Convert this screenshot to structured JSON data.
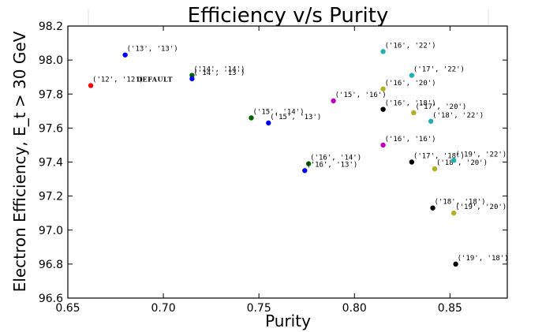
{
  "chart_data": {
    "type": "scatter",
    "title": "Efficiency v/s Purity",
    "xlabel": "Purity",
    "ylabel": "Electron Efficiency, E_t > 30 GeV",
    "xlim": [
      0.65,
      0.88
    ],
    "ylim": [
      96.6,
      98.2
    ],
    "xticks": [
      "0.65",
      "0.70",
      "0.75",
      "0.80",
      "0.85"
    ],
    "yticks": [
      "96.6",
      "96.8",
      "97.0",
      "97.2",
      "97.4",
      "97.6",
      "97.8",
      "98.0",
      "98.2"
    ],
    "grid": false,
    "points": [
      {
        "x": 0.662,
        "y": 97.85,
        "label": "('12', '12')",
        "note": "DEFAULT",
        "color": "#ff0000"
      },
      {
        "x": 0.68,
        "y": 98.03,
        "label": "('13', '13')",
        "color": "#0000ff"
      },
      {
        "x": 0.715,
        "y": 97.91,
        "label": "('14', '14')",
        "color": "#006400"
      },
      {
        "x": 0.715,
        "y": 97.89,
        "label": "('14', '13')",
        "color": "#0000ff"
      },
      {
        "x": 0.746,
        "y": 97.66,
        "label": "('15', '14')",
        "color": "#006400"
      },
      {
        "x": 0.755,
        "y": 97.63,
        "label": "('15', '13')",
        "color": "#0000ff"
      },
      {
        "x": 0.789,
        "y": 97.76,
        "label": "('15', '16')",
        "color": "#c000c0"
      },
      {
        "x": 0.776,
        "y": 97.39,
        "label": "('16', '14')",
        "color": "#006400"
      },
      {
        "x": 0.774,
        "y": 97.35,
        "label": "('16', '13')",
        "color": "#0000ff"
      },
      {
        "x": 0.815,
        "y": 98.05,
        "label": "('16', '22')",
        "color": "#20b0b0"
      },
      {
        "x": 0.815,
        "y": 97.83,
        "label": "('16', '20')",
        "color": "#b0b020"
      },
      {
        "x": 0.815,
        "y": 97.71,
        "label": "('16', '18')",
        "color": "#000000"
      },
      {
        "x": 0.815,
        "y": 97.5,
        "label": "('16', '16')",
        "color": "#c000c0"
      },
      {
        "x": 0.83,
        "y": 97.91,
        "label": "('17', '22')",
        "color": "#20b0b0"
      },
      {
        "x": 0.831,
        "y": 97.69,
        "label": "('17', '20')",
        "color": "#b0b020"
      },
      {
        "x": 0.83,
        "y": 97.4,
        "label": "('17', '18')",
        "color": "#000000"
      },
      {
        "x": 0.84,
        "y": 97.64,
        "label": "('18', '22')",
        "color": "#20b0b0"
      },
      {
        "x": 0.842,
        "y": 97.36,
        "label": "('18', '20')",
        "color": "#b0b020"
      },
      {
        "x": 0.841,
        "y": 97.13,
        "label": "('18', '18')",
        "color": "#000000"
      },
      {
        "x": 0.852,
        "y": 97.41,
        "label": "('19', '22')",
        "color": "#20b0b0"
      },
      {
        "x": 0.852,
        "y": 97.1,
        "label": "('19', '20')",
        "color": "#b0b020"
      },
      {
        "x": 0.853,
        "y": 96.8,
        "label": "('19', '18')",
        "color": "#000000"
      }
    ]
  }
}
